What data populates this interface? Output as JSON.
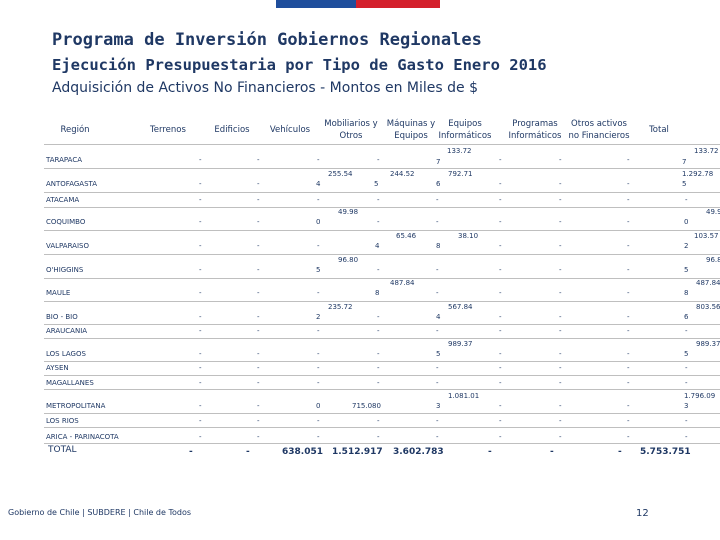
{
  "titles": {
    "main": "Programa de Inversión Gobiernos Regionales",
    "sub": "Ejecución Presupuestaria por Tipo de Gasto Enero 2016",
    "sub2": "Adquisición de Activos No Financieros - Montos en Miles de $"
  },
  "headers": {
    "region": "Región",
    "terrenos": "Terrenos",
    "edificios": "Edificios",
    "vehiculos": "Vehículos",
    "mobiliarios_1": "Mobiliarios y",
    "mobiliarios_2": "Otros",
    "maquinas_1": "Máquinas y",
    "maquinas_2": "Equipos",
    "equipos_1": "Equipos",
    "equipos_2": "Informáticos",
    "programas_1": "Programas",
    "programas_2": "Informáticos",
    "otros_1": "Otros activos",
    "otros_2": "no Financieros",
    "total": "Total"
  },
  "dash": "-",
  "regions": {
    "tarapaca": "TARAPACA",
    "antofagasta": "ANTOFAGASTA",
    "atacama": "ATACAMA",
    "coquimbo": "COQUIMBO",
    "valparaiso": "VALPARAISO",
    "ohiggins": "O'HIGGINS",
    "maule": "MAULE",
    "biobio": "BIO - BIO",
    "araucania": "ARAUCANIA",
    "loslagos": "LOS LAGOS",
    "aysen": "AYSEN",
    "magallanes": "MAGALLANES",
    "metropolitana": "METROPOLITANA",
    "losrios": "LOS RIOS",
    "arica": "ARICA - PARINACOTA"
  },
  "cells": {
    "tarapaca_eq_a": "133.72",
    "tarapaca_eq_b": "7",
    "tarapaca_tot_a": "133.72",
    "tarapaca_tot_b": "7",
    "antof_veh": "4",
    "antof_mob_a": "255.54",
    "antof_mob_b": "5",
    "antof_maq": "244.52",
    "antof_eq_a": "792.71",
    "antof_eq_b": "6",
    "antof_tot_a": "1.292.78",
    "antof_tot_b": "5",
    "coq_veh": "0",
    "coq_mob": "49.98",
    "coq_tot_a": "49.9",
    "coq_tot_b": "0",
    "valp_mob": "4",
    "valp_maq": "65.46",
    "valp_eq_a": "38.10",
    "valp_eq_b": "8",
    "valp_tot_a": "103.57",
    "valp_tot_b": "2",
    "ohig_veh": "5",
    "ohig_mob": "96.80",
    "ohig_tot_a": "96.8",
    "ohig_tot_b": "5",
    "maule_mob": "8",
    "maule_maq": "487.84",
    "maule_tot_a": "487.84",
    "maule_tot_b": "8",
    "bio_veh": "2",
    "bio_mob": "235.72",
    "bio_eq_a": "567.84",
    "bio_eq_b": "4",
    "bio_tot_a": "803.56",
    "bio_tot_b": "6",
    "lagos_eq_a": "989.37",
    "lagos_eq_b": "5",
    "lagos_tot_a": "989.37",
    "lagos_tot_b": "5",
    "metro_veh": "0",
    "metro_mob": "715.080",
    "metro_eq_a": "1.081.01",
    "metro_eq_b": "3",
    "metro_tot_a": "1.796.09",
    "metro_tot_b": "3"
  },
  "totals": {
    "label": "TOTAL",
    "terrenos": "-",
    "edificios": "-",
    "vehiculos": "638.051",
    "mobiliarios": "1.512.917",
    "maquinas": "3.602.783",
    "equipos": "-",
    "programas": "-",
    "otros": "-",
    "total": "5.753.751"
  },
  "footer": {
    "text": "Gobierno de Chile | SUBDERE | Chile de Todos",
    "page": "12"
  },
  "colors": {
    "text": "#1f3864",
    "flag_blue": "#1f4e9c",
    "flag_red": "#d4202c"
  }
}
